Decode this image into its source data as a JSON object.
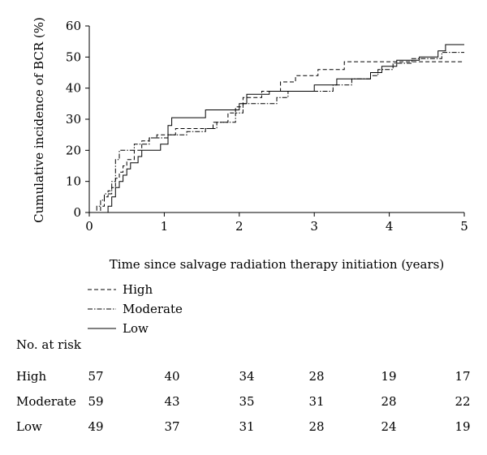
{
  "chart_data": {
    "type": "line",
    "title": "",
    "xlabel": "Time since salvage radiation therapy initiation (years)",
    "ylabel": "Cumulative incidence of BCR (%)",
    "xlim": [
      0,
      5
    ],
    "ylim": [
      0,
      60
    ],
    "x_ticks": [
      "0",
      "1",
      "2",
      "3",
      "4",
      "5"
    ],
    "y_ticks": [
      "0",
      "10",
      "20",
      "30",
      "40",
      "50",
      "60"
    ],
    "grid": false,
    "legend_placement": "below-left",
    "series": [
      {
        "name": "High",
        "line_style": "dashed",
        "points": [
          [
            0,
            0
          ],
          [
            0.15,
            0
          ],
          [
            0.15,
            2
          ],
          [
            0.2,
            2
          ],
          [
            0.2,
            5
          ],
          [
            0.25,
            5
          ],
          [
            0.25,
            7
          ],
          [
            0.3,
            7
          ],
          [
            0.3,
            8
          ],
          [
            0.35,
            8
          ],
          [
            0.35,
            11
          ],
          [
            0.4,
            11
          ],
          [
            0.4,
            13
          ],
          [
            0.45,
            13
          ],
          [
            0.45,
            15
          ],
          [
            0.5,
            15
          ],
          [
            0.5,
            17
          ],
          [
            0.6,
            17
          ],
          [
            0.6,
            20
          ],
          [
            0.7,
            20
          ],
          [
            0.7,
            23
          ],
          [
            0.8,
            23
          ],
          [
            0.8,
            24
          ],
          [
            0.9,
            24
          ],
          [
            0.9,
            25
          ],
          [
            1.15,
            25
          ],
          [
            1.15,
            27
          ],
          [
            1.65,
            27
          ],
          [
            1.65,
            29
          ],
          [
            1.85,
            29
          ],
          [
            1.85,
            32
          ],
          [
            1.95,
            32
          ],
          [
            1.95,
            34
          ],
          [
            2.05,
            34
          ],
          [
            2.05,
            37
          ],
          [
            2.3,
            37
          ],
          [
            2.3,
            39
          ],
          [
            2.55,
            39
          ],
          [
            2.55,
            42
          ],
          [
            2.75,
            42
          ],
          [
            2.75,
            44
          ],
          [
            3.05,
            44
          ],
          [
            3.05,
            46
          ],
          [
            3.4,
            46
          ],
          [
            3.4,
            48.5
          ],
          [
            5,
            48.5
          ]
        ]
      },
      {
        "name": "Moderate",
        "line_style": "dash-dot",
        "points": [
          [
            0,
            0
          ],
          [
            0.1,
            0
          ],
          [
            0.1,
            2
          ],
          [
            0.15,
            2
          ],
          [
            0.15,
            4
          ],
          [
            0.2,
            4
          ],
          [
            0.2,
            6
          ],
          [
            0.3,
            6
          ],
          [
            0.3,
            10
          ],
          [
            0.35,
            10
          ],
          [
            0.35,
            17
          ],
          [
            0.4,
            17
          ],
          [
            0.4,
            20
          ],
          [
            0.6,
            20
          ],
          [
            0.6,
            22
          ],
          [
            0.8,
            22
          ],
          [
            0.8,
            24
          ],
          [
            1.05,
            24
          ],
          [
            1.05,
            25
          ],
          [
            1.3,
            25
          ],
          [
            1.3,
            26
          ],
          [
            1.55,
            26
          ],
          [
            1.55,
            27
          ],
          [
            1.7,
            27
          ],
          [
            1.7,
            29
          ],
          [
            1.95,
            29
          ],
          [
            1.95,
            32
          ],
          [
            2.05,
            32
          ],
          [
            2.05,
            35
          ],
          [
            2.5,
            35
          ],
          [
            2.5,
            37
          ],
          [
            2.65,
            37
          ],
          [
            2.65,
            39
          ],
          [
            3.25,
            39
          ],
          [
            3.25,
            41
          ],
          [
            3.5,
            41
          ],
          [
            3.5,
            43
          ],
          [
            3.75,
            43
          ],
          [
            3.75,
            44
          ],
          [
            3.85,
            44
          ],
          [
            3.85,
            46
          ],
          [
            4.05,
            46
          ],
          [
            4.05,
            48
          ],
          [
            4.3,
            48
          ],
          [
            4.3,
            49.5
          ],
          [
            4.7,
            49.5
          ],
          [
            4.7,
            51.5
          ],
          [
            5,
            51.5
          ]
        ]
      },
      {
        "name": "Low",
        "line_style": "solid",
        "points": [
          [
            0,
            0
          ],
          [
            0.25,
            0
          ],
          [
            0.25,
            2
          ],
          [
            0.3,
            2
          ],
          [
            0.3,
            5
          ],
          [
            0.35,
            5
          ],
          [
            0.35,
            8
          ],
          [
            0.4,
            8
          ],
          [
            0.4,
            10
          ],
          [
            0.45,
            10
          ],
          [
            0.45,
            12
          ],
          [
            0.5,
            12
          ],
          [
            0.5,
            14
          ],
          [
            0.55,
            14
          ],
          [
            0.55,
            16
          ],
          [
            0.65,
            16
          ],
          [
            0.65,
            18
          ],
          [
            0.7,
            18
          ],
          [
            0.7,
            20
          ],
          [
            0.95,
            20
          ],
          [
            0.95,
            22
          ],
          [
            1.05,
            22
          ],
          [
            1.05,
            28
          ],
          [
            1.1,
            28
          ],
          [
            1.1,
            30.5
          ],
          [
            1.55,
            30.5
          ],
          [
            1.55,
            33
          ],
          [
            2.0,
            33
          ],
          [
            2.0,
            35
          ],
          [
            2.1,
            35
          ],
          [
            2.1,
            38
          ],
          [
            2.4,
            38
          ],
          [
            2.4,
            39
          ],
          [
            3.0,
            39
          ],
          [
            3.0,
            41
          ],
          [
            3.3,
            41
          ],
          [
            3.3,
            43
          ],
          [
            3.75,
            43
          ],
          [
            3.75,
            45
          ],
          [
            3.9,
            45
          ],
          [
            3.9,
            47
          ],
          [
            4.1,
            47
          ],
          [
            4.1,
            49
          ],
          [
            4.4,
            49
          ],
          [
            4.4,
            50
          ],
          [
            4.65,
            50
          ],
          [
            4.65,
            52
          ],
          [
            4.75,
            52
          ],
          [
            4.75,
            54
          ],
          [
            5,
            54
          ]
        ]
      }
    ],
    "risk_table": {
      "title": "No. at risk",
      "columns_at_years": [
        0,
        1,
        2,
        3,
        4,
        5
      ],
      "rows": [
        {
          "label": "High",
          "values": [
            "57",
            "40",
            "34",
            "28",
            "19",
            "17"
          ]
        },
        {
          "label": "Moderate",
          "values": [
            "59",
            "43",
            "35",
            "31",
            "28",
            "22"
          ]
        },
        {
          "label": "Low",
          "values": [
            "49",
            "37",
            "31",
            "28",
            "24",
            "19"
          ]
        }
      ]
    }
  }
}
